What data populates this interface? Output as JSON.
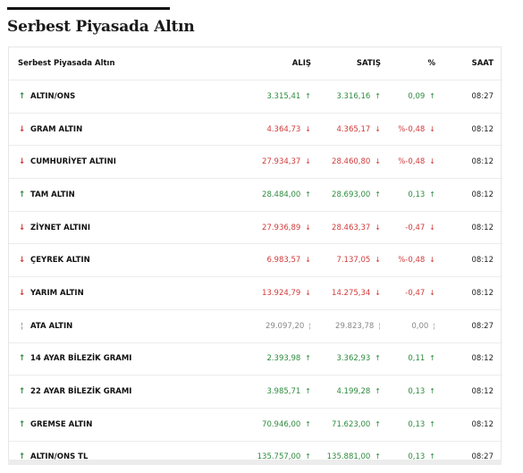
{
  "page": {
    "title": "Serbest Piyasada Altın"
  },
  "table": {
    "headers": {
      "name": "Serbest Piyasada Altın",
      "buy": "ALIŞ",
      "sell": "SATIŞ",
      "pct": "%",
      "time": "SAAT"
    },
    "rows": [
      {
        "name": "ALTIN/ONS",
        "buy": "3.315,41",
        "sell": "3.316,16",
        "pct": "0,09",
        "time": "08:27",
        "trend": "up"
      },
      {
        "name": "GRAM ALTIN",
        "buy": "4.364,73",
        "sell": "4.365,17",
        "pct": "%-0,48",
        "time": "08:12",
        "trend": "down"
      },
      {
        "name": "CUMHURİYET ALTINI",
        "buy": "27.934,37",
        "sell": "28.460,80",
        "pct": "%-0,48",
        "time": "08:12",
        "trend": "down"
      },
      {
        "name": "TAM ALTIN",
        "buy": "28.484,00",
        "sell": "28.693,00",
        "pct": "0,13",
        "time": "08:12",
        "trend": "up"
      },
      {
        "name": "ZİYNET ALTINI",
        "buy": "27.936,89",
        "sell": "28.463,37",
        "pct": "-0,47",
        "time": "08:12",
        "trend": "down"
      },
      {
        "name": "ÇEYREK ALTIN",
        "buy": "6.983,57",
        "sell": "7.137,05",
        "pct": "%-0,48",
        "time": "08:12",
        "trend": "down"
      },
      {
        "name": "YARIM ALTIN",
        "buy": "13.924,79",
        "sell": "14.275,34",
        "pct": "-0,47",
        "time": "08:12",
        "trend": "down"
      },
      {
        "name": "ATA ALTIN",
        "buy": "29.097,20",
        "sell": "29.823,78",
        "pct": "0,00",
        "time": "08:27",
        "trend": "flat"
      },
      {
        "name": "14 AYAR BİLEZİK GRAMI",
        "buy": "2.393,98",
        "sell": "3.362,93",
        "pct": "0,11",
        "time": "08:12",
        "trend": "up"
      },
      {
        "name": "22 AYAR BİLEZİK GRAMI",
        "buy": "3.985,71",
        "sell": "4.199,28",
        "pct": "0,13",
        "time": "08:12",
        "trend": "up"
      },
      {
        "name": "GREMSE ALTIN",
        "buy": "70.946,00",
        "sell": "71.623,00",
        "pct": "0,13",
        "time": "08:12",
        "trend": "up"
      },
      {
        "name": "ALTIN/ONS TL",
        "buy": "135.757,00",
        "sell": "135.881,00",
        "pct": "0,13",
        "time": "08:27",
        "trend": "up"
      }
    ]
  },
  "icons": {
    "up": "arrow-up-icon",
    "down": "arrow-down-icon",
    "flat": "no-change-icon"
  },
  "colors": {
    "up": "#2e8b3e",
    "down": "#d23a3a",
    "flat": "#9a9a9a"
  }
}
